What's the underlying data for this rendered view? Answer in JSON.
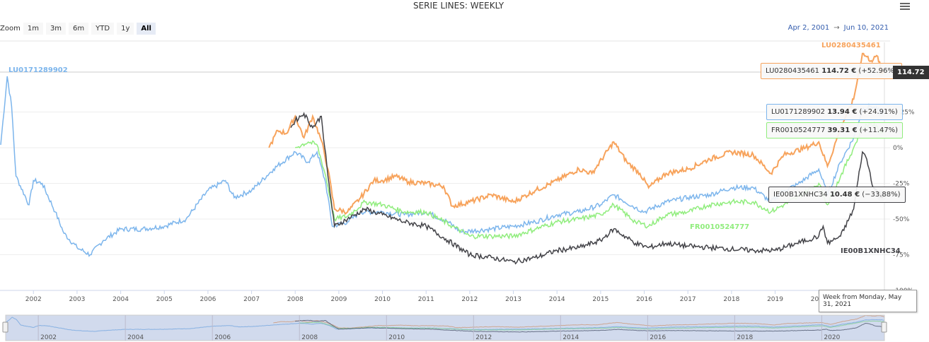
{
  "title": "SERIE LINES: WEEKLY",
  "menu_icon": "hamburger-menu-icon",
  "zoom": {
    "label": "Zoom",
    "buttons": [
      "1m",
      "3m",
      "6m",
      "YTD",
      "1y",
      "All"
    ],
    "selected": "All"
  },
  "range": {
    "from": "Apr 2, 2001",
    "arrow": "→",
    "to": "Jun 10, 2021"
  },
  "crosshair_label": "114.72",
  "week_tooltip": "Week from Monday, May 31, 2021",
  "tooltips": [
    {
      "name": "LU0280435461",
      "value": "114.72 €",
      "change": "(+52.96%)",
      "color": "#f7a35c"
    },
    {
      "name": "LU0171289902",
      "value": "13.94 €",
      "change": "(+24.91%)",
      "color": "#7cb5ec"
    },
    {
      "name": "FR0010524777",
      "value": "39.31 €",
      "change": "(+11.47%)",
      "color": "#90ed7d"
    },
    {
      "name": "IE00B1XNHC34",
      "value": "10.48 €",
      "change": "(−33.88%)",
      "color": "#434348"
    }
  ],
  "chart_data": {
    "type": "line",
    "title": "SERIE LINES: WEEKLY",
    "xlim": [
      2001.25,
      2021.44
    ],
    "ylim": [
      -100,
      75
    ],
    "yticks": [
      "-100%",
      "-75%",
      "-50%",
      "-25%",
      "0%",
      "+ 25%"
    ],
    "ytick_values": [
      -100,
      -75,
      -50,
      -25,
      0,
      25
    ],
    "xticks": [
      "2002",
      "2003",
      "2004",
      "2005",
      "2006",
      "2007",
      "2008",
      "2009",
      "2010",
      "2011",
      "2012",
      "2013",
      "2014",
      "2015",
      "2016",
      "2017",
      "2018",
      "2019",
      "2020"
    ],
    "navigator_ticks": [
      "2002",
      "2004",
      "2006",
      "2008",
      "2010",
      "2012",
      "2014",
      "2016",
      "2018",
      "2020"
    ],
    "grid": true,
    "series": [
      {
        "name": "LU0171289902",
        "color": "#7cb5ec",
        "x": [
          2001.25,
          2001.4,
          2001.5,
          2001.6,
          2001.9,
          2002.0,
          2002.2,
          2002.5,
          2002.7,
          2003.0,
          2003.3,
          2003.6,
          2004.0,
          2004.5,
          2005.0,
          2005.5,
          2006.0,
          2006.4,
          2006.6,
          2007.0,
          2007.5,
          2008.0,
          2008.3,
          2008.5,
          2008.7,
          2008.85,
          2009.2,
          2009.5,
          2010.0,
          2010.5,
          2011.0,
          2011.5,
          2011.8,
          2012.5,
          2013.0,
          2013.5,
          2014.0,
          2014.5,
          2015.0,
          2015.3,
          2015.8,
          2016.0,
          2016.5,
          2017.0,
          2017.5,
          2018.0,
          2018.5,
          2018.9,
          2019.2,
          2019.5,
          2020.0,
          2020.2,
          2020.5,
          2020.8,
          2021.0,
          2021.2,
          2021.44
        ],
        "y": [
          2,
          50,
          29,
          -20,
          -40,
          -23,
          -25,
          -45,
          -60,
          -70,
          -75,
          -65,
          -57,
          -57,
          -55,
          -50,
          -30,
          -23,
          -35,
          -30,
          -15,
          -3,
          -10,
          -3,
          -25,
          -55,
          -52,
          -45,
          -45,
          -47,
          -45,
          -52,
          -59,
          -57,
          -55,
          -52,
          -47,
          -45,
          -40,
          -33,
          -42,
          -45,
          -38,
          -35,
          -33,
          -28,
          -28,
          -38,
          -30,
          -26,
          -15,
          -33,
          -10,
          7,
          27,
          29,
          24.91
        ]
      },
      {
        "name": "LU0280435461",
        "color": "#f7a35c",
        "x": [
          2007.4,
          2007.6,
          2007.8,
          2008.0,
          2008.2,
          2008.4,
          2008.6,
          2008.75,
          2008.9,
          2009.2,
          2009.5,
          2009.8,
          2010.0,
          2010.3,
          2010.6,
          2011.0,
          2011.4,
          2011.6,
          2012.0,
          2012.5,
          2013.0,
          2013.5,
          2014.0,
          2014.5,
          2014.8,
          2015.3,
          2015.6,
          2015.9,
          2016.1,
          2016.5,
          2017.0,
          2017.5,
          2018.0,
          2018.5,
          2018.9,
          2019.2,
          2019.7,
          2020.0,
          2020.2,
          2020.5,
          2020.8,
          2021.0,
          2021.2,
          2021.35,
          2021.44
        ],
        "y": [
          0,
          12,
          10,
          22,
          7,
          22,
          5,
          -15,
          -43,
          -45,
          -35,
          -23,
          -23,
          -20,
          -24,
          -25,
          -27,
          -41,
          -38,
          -33,
          -38,
          -30,
          -23,
          -15,
          -18,
          4,
          -10,
          -18,
          -28,
          -18,
          -15,
          -8,
          -3,
          -5,
          -18,
          -5,
          0,
          4,
          -13,
          14,
          34,
          66,
          61,
          64,
          52.96
        ]
      },
      {
        "name": "FR0010524777",
        "color": "#90ed7d",
        "x": [
          2008.0,
          2008.3,
          2008.5,
          2008.7,
          2008.9,
          2009.2,
          2009.6,
          2010.0,
          2010.5,
          2011.0,
          2011.6,
          2012.0,
          2012.5,
          2013.0,
          2013.5,
          2014.0,
          2014.5,
          2015.0,
          2015.3,
          2015.8,
          2016.1,
          2016.5,
          2017.0,
          2017.5,
          2018.0,
          2018.5,
          2018.9,
          2019.2,
          2019.5,
          2020.0,
          2020.2,
          2020.5,
          2020.8,
          2021.0,
          2021.2,
          2021.44
        ],
        "y": [
          0,
          4,
          2,
          -20,
          -50,
          -48,
          -38,
          -40,
          -45,
          -45,
          -55,
          -62,
          -62,
          -62,
          -57,
          -52,
          -50,
          -47,
          -40,
          -52,
          -55,
          -47,
          -45,
          -40,
          -38,
          -38,
          -45,
          -40,
          -35,
          -25,
          -40,
          -20,
          0,
          14,
          17,
          11.47
        ]
      },
      {
        "name": "IE00B1XNHC34",
        "color": "#434348",
        "x": [
          2007.9,
          2008.0,
          2008.2,
          2008.4,
          2008.6,
          2008.75,
          2008.9,
          2009.2,
          2009.6,
          2010.0,
          2010.5,
          2011.0,
          2011.5,
          2012.0,
          2012.5,
          2013.0,
          2013.5,
          2014.0,
          2014.5,
          2015.0,
          2015.3,
          2015.8,
          2016.1,
          2016.5,
          2017.0,
          2017.5,
          2018.0,
          2018.5,
          2019.0,
          2019.5,
          2020.0,
          2020.1,
          2020.2,
          2020.5,
          2020.8,
          2021.0,
          2021.1,
          2021.25,
          2021.44
        ],
        "y": [
          14,
          19,
          24,
          14,
          22,
          -20,
          -55,
          -50,
          -43,
          -47,
          -52,
          -55,
          -65,
          -75,
          -77,
          -80,
          -77,
          -72,
          -70,
          -65,
          -57,
          -67,
          -70,
          -67,
          -69,
          -70,
          -71,
          -72,
          -72,
          -67,
          -62,
          -55,
          -67,
          -62,
          -43,
          -3,
          -8,
          -28,
          -33.88
        ]
      }
    ]
  }
}
